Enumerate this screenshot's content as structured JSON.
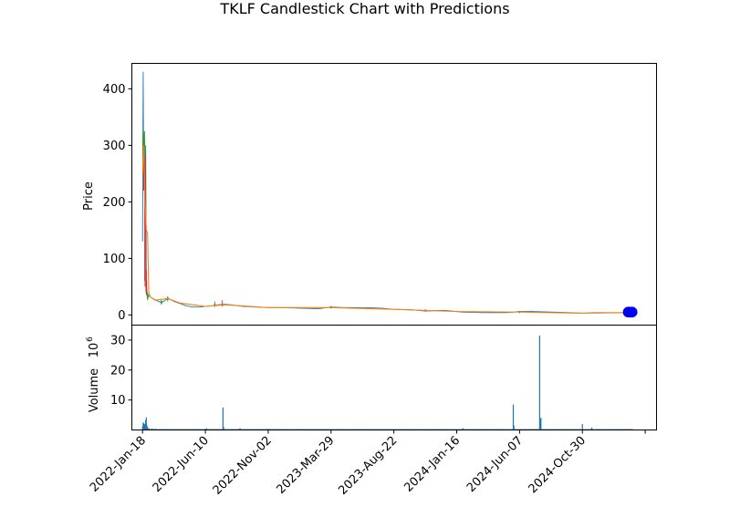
{
  "chart_data": [
    {
      "type": "candlestick",
      "title": "TKLF Candlestick Chart with Predictions",
      "ylabel": "Price",
      "ylim": [
        -18,
        445
      ],
      "yticks": [
        0,
        100,
        200,
        300,
        400
      ],
      "xlim": [
        -17,
        818
      ],
      "x_ticks": [
        {
          "label": "2022-Jan-18",
          "x": 0
        },
        {
          "label": "2022-Jun-10",
          "x": 100
        },
        {
          "label": "2022-Nov-02",
          "x": 200
        },
        {
          "label": "2023-Mar-29",
          "x": 300
        },
        {
          "label": "2023-Aug-22",
          "x": 400
        },
        {
          "label": "2024-Jan-16",
          "x": 500
        },
        {
          "label": "2024-Jun-07",
          "x": 600
        },
        {
          "label": "2024-Oct-30",
          "x": 700
        },
        {
          "label": "",
          "x": 800
        }
      ],
      "price_points": [
        [
          0,
          130
        ],
        [
          1,
          430
        ],
        [
          2,
          220
        ],
        [
          3,
          325
        ],
        [
          4,
          250
        ],
        [
          5,
          300
        ],
        [
          6,
          60
        ],
        [
          7,
          40
        ],
        [
          8,
          28
        ],
        [
          10,
          35
        ],
        [
          12,
          32
        ],
        [
          15,
          30
        ],
        [
          20,
          27
        ],
        [
          25,
          24
        ],
        [
          30,
          22
        ],
        [
          35,
          25
        ],
        [
          40,
          30
        ],
        [
          45,
          27
        ],
        [
          50,
          24
        ],
        [
          55,
          22
        ],
        [
          60,
          20
        ],
        [
          70,
          16
        ],
        [
          80,
          14
        ],
        [
          90,
          14
        ],
        [
          100,
          15
        ],
        [
          110,
          16
        ],
        [
          120,
          18
        ],
        [
          130,
          19
        ],
        [
          140,
          18
        ],
        [
          160,
          15
        ],
        [
          180,
          14
        ],
        [
          200,
          13
        ],
        [
          220,
          13
        ],
        [
          250,
          12
        ],
        [
          280,
          11
        ],
        [
          300,
          14
        ],
        [
          320,
          13
        ],
        [
          350,
          13
        ],
        [
          380,
          12
        ],
        [
          400,
          10
        ],
        [
          430,
          9
        ],
        [
          450,
          7
        ],
        [
          480,
          8
        ],
        [
          510,
          5
        ],
        [
          540,
          4
        ],
        [
          560,
          4
        ],
        [
          580,
          4
        ],
        [
          600,
          6
        ],
        [
          620,
          6
        ],
        [
          650,
          5
        ],
        [
          680,
          4
        ],
        [
          700,
          3
        ],
        [
          720,
          4
        ],
        [
          760,
          4
        ],
        [
          775,
          4
        ]
      ],
      "candles": [
        {
          "x": 1,
          "open": 280,
          "close": 320,
          "high": 330,
          "low": 250,
          "color": "#2ca02c"
        },
        {
          "x": 2,
          "open": 300,
          "close": 260,
          "high": 310,
          "low": 220,
          "color": "#d62728"
        },
        {
          "x": 3,
          "open": 270,
          "close": 310,
          "high": 325,
          "low": 260,
          "color": "#2ca02c"
        },
        {
          "x": 4,
          "open": 250,
          "close": 60,
          "high": 280,
          "low": 50,
          "color": "#d62728"
        },
        {
          "x": 6,
          "open": 60,
          "close": 40,
          "high": 80,
          "low": 35,
          "color": "#d62728"
        },
        {
          "x": 8,
          "open": 30,
          "close": 36,
          "high": 40,
          "low": 26,
          "color": "#2ca02c"
        },
        {
          "x": 30,
          "open": 20,
          "close": 25,
          "high": 27,
          "low": 18,
          "color": "#2ca02c"
        },
        {
          "x": 40,
          "open": 26,
          "close": 31,
          "high": 33,
          "low": 24,
          "color": "#2ca02c"
        },
        {
          "x": 115,
          "open": 16,
          "close": 20,
          "high": 24,
          "low": 14,
          "color": "#2ca02c"
        },
        {
          "x": 127,
          "open": 18,
          "close": 16,
          "high": 26,
          "low": 15,
          "color": "#d62728"
        },
        {
          "x": 300,
          "open": 12,
          "close": 15,
          "high": 16,
          "low": 11,
          "color": "#2ca02c"
        },
        {
          "x": 450,
          "open": 9,
          "close": 7,
          "high": 10,
          "low": 6,
          "color": "#d62728"
        },
        {
          "x": 600,
          "open": 4,
          "close": 6,
          "high": 7,
          "low": 3,
          "color": "#2ca02c"
        }
      ],
      "prediction_line": [
        [
          0,
          250
        ],
        [
          2,
          300
        ],
        [
          4,
          200
        ],
        [
          6,
          150
        ],
        [
          8,
          145
        ],
        [
          10,
          40
        ],
        [
          12,
          32
        ],
        [
          20,
          26
        ],
        [
          40,
          29
        ],
        [
          60,
          21
        ],
        [
          100,
          15
        ],
        [
          130,
          18
        ],
        [
          200,
          13
        ],
        [
          300,
          13
        ],
        [
          400,
          10
        ],
        [
          500,
          6
        ],
        [
          600,
          5
        ],
        [
          700,
          3
        ],
        [
          775,
          4
        ]
      ],
      "prediction_markers": [
        {
          "x": 773,
          "y": 5
        },
        {
          "x": 776,
          "y": 5
        },
        {
          "x": 779,
          "y": 5
        }
      ],
      "colors": {
        "price": "#1f77b4",
        "prediction": "#ff7f0e",
        "up": "#2ca02c",
        "down": "#d62728",
        "marker": "#0000ff"
      }
    },
    {
      "type": "bar",
      "ylabel": "Volume",
      "ylabel_exponent": "10",
      "ylabel_exponent_sup": "6",
      "ylim": [
        0,
        35
      ],
      "yticks": [
        10,
        20,
        30
      ],
      "volume_points": [
        [
          0,
          1.2
        ],
        [
          1,
          2.5
        ],
        [
          2,
          2.2
        ],
        [
          3,
          1.8
        ],
        [
          4,
          2.0
        ],
        [
          5,
          3.3
        ],
        [
          6,
          4.2
        ],
        [
          7,
          1.5
        ],
        [
          8,
          0.8
        ],
        [
          10,
          0.6
        ],
        [
          15,
          0.5
        ],
        [
          20,
          0.4
        ],
        [
          100,
          0.4
        ],
        [
          102,
          0.5
        ],
        [
          128,
          7.5
        ],
        [
          129,
          1.0
        ],
        [
          155,
          0.6
        ],
        [
          200,
          0.4
        ],
        [
          300,
          0.3
        ],
        [
          400,
          0.3
        ],
        [
          510,
          0.6
        ],
        [
          590,
          8.5
        ],
        [
          591,
          1.5
        ],
        [
          632,
          31.5
        ],
        [
          633,
          4.0
        ],
        [
          634,
          4.0
        ],
        [
          700,
          2.0
        ],
        [
          715,
          0.8
        ],
        [
          775,
          0.3
        ]
      ],
      "baseline": 0.3,
      "color": "#1f77b4"
    }
  ]
}
